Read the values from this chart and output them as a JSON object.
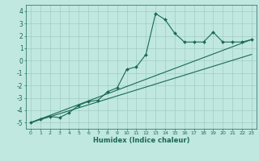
{
  "title": "",
  "xlabel": "Humidex (Indice chaleur)",
  "ylabel": "",
  "bg_color": "#c0e8e0",
  "grid_color": "#a0ccc4",
  "line_color": "#1a6858",
  "xlim": [
    -0.5,
    23.5
  ],
  "ylim": [
    -5.5,
    4.5
  ],
  "xticks": [
    0,
    1,
    2,
    3,
    4,
    5,
    6,
    7,
    8,
    9,
    10,
    11,
    12,
    13,
    14,
    15,
    16,
    17,
    18,
    19,
    20,
    21,
    22,
    23
  ],
  "yticks": [
    -5,
    -4,
    -3,
    -2,
    -1,
    0,
    1,
    2,
    3,
    4
  ],
  "main_x": [
    0,
    1,
    2,
    3,
    4,
    5,
    6,
    7,
    8,
    9,
    10,
    11,
    12,
    13,
    14,
    15,
    16,
    17,
    18,
    19,
    20,
    21,
    22,
    23
  ],
  "main_y": [
    -5.0,
    -4.7,
    -4.5,
    -4.6,
    -4.2,
    -3.6,
    -3.3,
    -3.2,
    -2.5,
    -2.2,
    -0.7,
    -0.5,
    0.5,
    3.8,
    3.3,
    2.2,
    1.5,
    1.5,
    1.5,
    2.3,
    1.5,
    1.5,
    1.5,
    1.7
  ],
  "line1_x": [
    0,
    23
  ],
  "line1_y": [
    -5.0,
    1.7
  ],
  "line2_x": [
    0,
    23
  ],
  "line2_y": [
    -5.0,
    0.5
  ]
}
